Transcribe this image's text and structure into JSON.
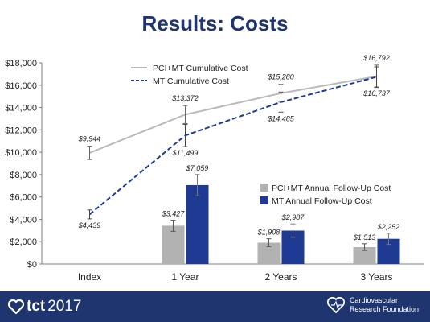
{
  "title": "Results: Costs",
  "chart_data": {
    "type": "bar+line",
    "categories": [
      "Index",
      "1 Year",
      "2 Years",
      "3 Years"
    ],
    "ylim": [
      0,
      18000
    ],
    "yticks": [
      "$0",
      "$2,000",
      "$4,000",
      "$6,000",
      "$8,000",
      "$10,000",
      "$12,000",
      "$14,000",
      "$16,000",
      "$18,000"
    ],
    "ytick_values": [
      0,
      2000,
      4000,
      6000,
      8000,
      10000,
      12000,
      14000,
      16000,
      18000
    ],
    "grid": false,
    "lines": [
      {
        "name": "PCI+MT Cumulative Cost",
        "color": "#b9b9b9",
        "dash": "solid",
        "values": [
          9944,
          13372,
          15280,
          16792
        ],
        "labels": [
          "$9,944",
          "$13,372",
          "$15,280",
          "$16,792"
        ],
        "error": [
          600,
          800,
          800,
          1000
        ]
      },
      {
        "name": "MT Cumulative Cost",
        "color": "#1f3a93",
        "dash": "dashed",
        "values": [
          4439,
          11499,
          14485,
          16737
        ],
        "labels": [
          "$4,439",
          "$11,499",
          "$14,485",
          "$16,737"
        ],
        "error": [
          400,
          1000,
          900,
          900
        ]
      }
    ],
    "bars": [
      {
        "name": "PCI+MT Annual Follow-Up Cost",
        "color": "#b2b2b2",
        "values": [
          null,
          3427,
          1908,
          1513
        ],
        "labels": [
          "",
          "$3,427",
          "$1,908",
          "$1,513"
        ],
        "error": [
          0,
          500,
          350,
          300
        ]
      },
      {
        "name": "MT Annual Follow-Up Cost",
        "color": "#1f3a93",
        "values": [
          null,
          7059,
          2987,
          2252
        ],
        "labels": [
          "",
          "$7,059",
          "$2,987",
          "$2,252"
        ],
        "error": [
          0,
          950,
          600,
          500
        ]
      }
    ],
    "legend_lines_position": "top-left",
    "legend_bars_position": "middle-right"
  },
  "footer": {
    "tct_brand": "tct",
    "tct_year": "2017",
    "crf_line1": "Cardiovascular",
    "crf_line2": "Research Foundation"
  }
}
